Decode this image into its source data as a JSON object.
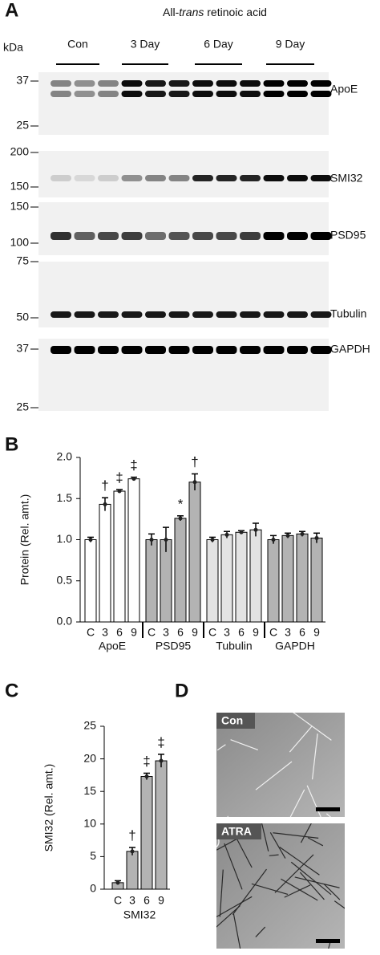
{
  "panel_a": {
    "label": "A",
    "title": {
      "before": "All-",
      "italic": "trans",
      "after": " retinoic acid"
    },
    "kda": "kDa",
    "groups": [
      "Con",
      "3 Day",
      "6 Day",
      "9 Day"
    ],
    "blots": [
      {
        "name": "ApoE",
        "markers": [
          "37",
          "25"
        ]
      },
      {
        "name": "SMI32",
        "markers": [
          "200",
          "150"
        ]
      },
      {
        "name": "PSD95",
        "markers": [
          "150",
          "100"
        ]
      },
      {
        "name": "Tubulin",
        "markers": [
          "75",
          "50"
        ]
      },
      {
        "name": "GAPDH",
        "markers": [
          "37",
          "25"
        ]
      }
    ]
  },
  "chart_data": [
    {
      "type": "bar",
      "panel_label": "B",
      "y_label": "Protein (Rel. amt.)",
      "categories": [
        "C",
        "3",
        "6",
        "9"
      ],
      "series": [
        {
          "name": "ApoE",
          "color": "#ffffff",
          "values": [
            1.0,
            1.43,
            1.59,
            1.74
          ],
          "errors": [
            0.03,
            0.08,
            0.02,
            0.02
          ],
          "annotations": [
            null,
            "†",
            "‡",
            "‡"
          ]
        },
        {
          "name": "PSD95",
          "color": "#b3b3b3",
          "values": [
            1.0,
            1.0,
            1.26,
            1.7
          ],
          "errors": [
            0.07,
            0.15,
            0.03,
            0.1
          ],
          "annotations": [
            null,
            null,
            "*",
            "†"
          ]
        },
        {
          "name": "Tubulin",
          "color": "#e3e3e3",
          "values": [
            1.0,
            1.06,
            1.09,
            1.12
          ],
          "errors": [
            0.03,
            0.04,
            0.02,
            0.08
          ],
          "annotations": [
            null,
            null,
            null,
            null
          ]
        },
        {
          "name": "GAPDH",
          "color": "#b3b3b3",
          "values": [
            1.0,
            1.05,
            1.07,
            1.02
          ],
          "errors": [
            0.05,
            0.03,
            0.03,
            0.06
          ],
          "annotations": [
            null,
            null,
            null,
            null
          ]
        }
      ],
      "ylim": [
        0,
        2.0
      ],
      "yticks": [
        {
          "value": 0,
          "label": "0.0"
        },
        {
          "value": 0.5,
          "label": "0.5"
        },
        {
          "value": 1,
          "label": "1.0"
        },
        {
          "value": 1.5,
          "label": "1.5"
        },
        {
          "value": 2,
          "label": "2.0"
        }
      ]
    },
    {
      "type": "bar",
      "panel_label": "C",
      "y_label": "SMI32 (Rel. amt.)",
      "categories": [
        "C",
        "3",
        "6",
        "9"
      ],
      "series": [
        {
          "name": "SMI32",
          "color": "#b3b3b3",
          "values": [
            1.0,
            5.8,
            17.3,
            19.7
          ],
          "errors": [
            0.3,
            0.6,
            0.5,
            1.0
          ],
          "annotations": [
            null,
            "†",
            "‡",
            "‡"
          ]
        }
      ],
      "ylim": [
        0,
        25
      ],
      "yticks": [
        0,
        5,
        10,
        15,
        20,
        25
      ]
    }
  ],
  "panel_d": {
    "label": "D",
    "images": [
      {
        "label": "Con"
      },
      {
        "label": "ATRA"
      }
    ]
  }
}
